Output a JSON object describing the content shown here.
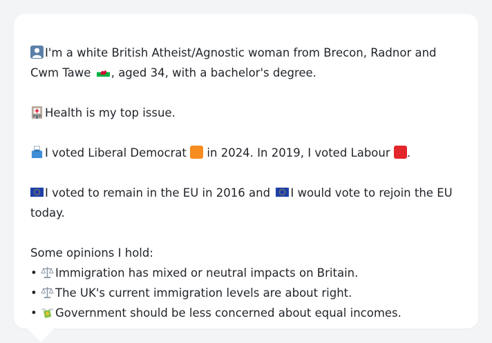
{
  "colors": {
    "lib_dem": "#f78c1f",
    "labour": "#e3262a",
    "eu_blue": "#1f3fa6",
    "eu_star": "#ffd200"
  },
  "intro": {
    "icon": "person-silhouette-icon",
    "text": "I'm a white British Atheist/Agnostic woman from Brecon, Radnor and Cwm Tawe",
    "flag_icon": "wales-flag-icon",
    "suffix": ", aged 34, with a bachelor's degree."
  },
  "issue": {
    "icon": "hospital-icon",
    "text": "Health is my top issue."
  },
  "vote": {
    "icon": "ballot-box-icon",
    "part1": "I voted Liberal Democrat",
    "party1_icon": "orange-square-icon",
    "part2": "in 2024. In 2019, I voted Labour",
    "party2_icon": "red-square-icon",
    "part3": "."
  },
  "eu": {
    "icon": "eu-flag-icon",
    "part1": "I voted to remain in the EU in 2016 and",
    "part2": "I would vote to rejoin the EU today."
  },
  "opinions": {
    "title": "Some opinions I hold:",
    "bullet": "•",
    "items": [
      {
        "icon": "balance-scale-icon",
        "text": "Immigration has mixed or neutral impacts on Britain."
      },
      {
        "icon": "balance-scale-icon",
        "text": "The UK's current immigration levels are about right."
      },
      {
        "icon": "money-with-wings-icon",
        "text": "Government should be less concerned about equal incomes."
      }
    ]
  }
}
